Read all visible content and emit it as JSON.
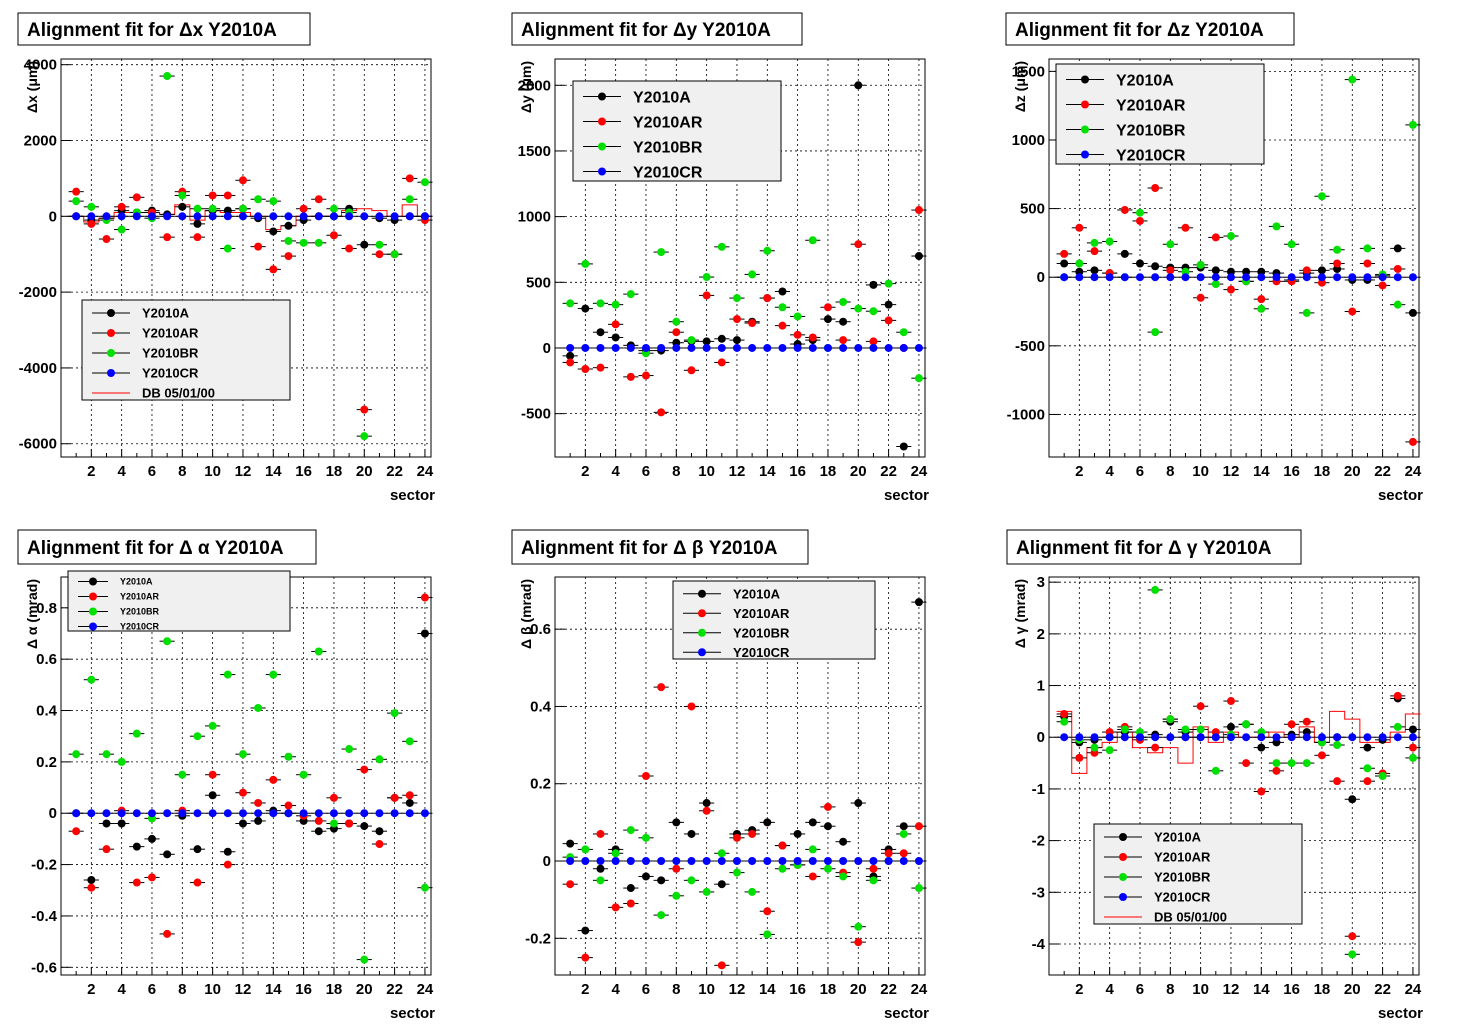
{
  "chart_data": [
    {
      "type": "scatter",
      "title": "Alignment fit for   Δx Y2010A",
      "xlabel": "sector",
      "ylabel": "Δx (μm)",
      "xlim": [
        0,
        24.4
      ],
      "ylim": [
        -6350,
        4150
      ],
      "xticks": [
        "2",
        "4",
        "6",
        "8",
        "10",
        "12",
        "14",
        "16",
        "18",
        "20",
        "22",
        "24"
      ],
      "yticks": [
        {
          "v": 4000,
          "label": "4000"
        },
        {
          "v": 2000,
          "label": "2000"
        },
        {
          "v": 0,
          "label": "0"
        },
        {
          "v": -2000,
          "label": "-2000"
        },
        {
          "v": -4000,
          "label": "-4000"
        },
        {
          "v": -6000,
          "label": "-6000"
        }
      ],
      "grid": true,
      "legend_position": "lower-middle",
      "legend": [
        "Y2010A",
        "Y2010AR",
        "Y2010BR",
        "Y2010CR",
        "DB 05/01/00"
      ],
      "series": [
        {
          "name": "Y2010A",
          "color": "#000000",
          "y": [
            0,
            -100,
            -50,
            150,
            100,
            150,
            50,
            250,
            -200,
            150,
            150,
            200,
            -50,
            -400,
            -250,
            -100,
            0,
            0,
            200,
            -750,
            -50,
            -100,
            0,
            0
          ]
        },
        {
          "name": "Y2010AR",
          "color": "#ff0000",
          "y": [
            650,
            -200,
            -600,
            250,
            500,
            100,
            -550,
            650,
            -550,
            550,
            550,
            950,
            -800,
            -1400,
            -1050,
            200,
            450,
            -500,
            -850,
            -5100,
            -1000,
            -1000,
            1000,
            -100
          ]
        },
        {
          "name": "Y2010BR",
          "color": "#00e000",
          "y": [
            400,
            250,
            -100,
            -350,
            100,
            -50,
            3700,
            550,
            200,
            200,
            -850,
            200,
            450,
            400,
            -650,
            -700,
            -700,
            200,
            100,
            -5800,
            -750,
            -1000,
            450,
            900
          ]
        },
        {
          "name": "Y2010CR",
          "color": "#0000ff",
          "y": [
            0,
            0,
            0,
            0,
            0,
            0,
            0,
            0,
            0,
            0,
            0,
            0,
            0,
            0,
            0,
            0,
            0,
            0,
            0,
            0,
            0,
            0,
            0,
            0
          ]
        }
      ],
      "db_line": {
        "name": "DB 05/01/00",
        "color": "#ff0000",
        "y": [
          0,
          -150,
          -50,
          100,
          100,
          100,
          50,
          300,
          -100,
          150,
          100,
          100,
          0,
          -350,
          -250,
          0,
          0,
          0,
          150,
          200,
          150,
          0,
          300,
          0
        ]
      }
    },
    {
      "type": "scatter",
      "title": "Alignment fit for   Δy Y2010A",
      "xlabel": "sector",
      "ylabel": "Δy (μm)",
      "xlim": [
        0,
        24.4
      ],
      "ylim": [
        -830,
        2200
      ],
      "xticks": [
        "2",
        "4",
        "6",
        "8",
        "10",
        "12",
        "14",
        "16",
        "18",
        "20",
        "22",
        "24"
      ],
      "yticks": [
        {
          "v": 2000,
          "label": "2000"
        },
        {
          "v": 1500,
          "label": "1500"
        },
        {
          "v": 1000,
          "label": "1000"
        },
        {
          "v": 500,
          "label": "500"
        },
        {
          "v": 0,
          "label": "0"
        },
        {
          "v": -500,
          "label": "-500"
        }
      ],
      "grid": true,
      "legend_position": "top-left",
      "legend": [
        "Y2010A",
        "Y2010AR",
        "Y2010BR",
        "Y2010CR"
      ],
      "series": [
        {
          "name": "Y2010A",
          "color": "#000000",
          "y": [
            -60,
            300,
            120,
            80,
            20,
            -20,
            -20,
            40,
            50,
            50,
            70,
            60,
            200,
            380,
            430,
            30,
            60,
            220,
            200,
            2000,
            480,
            330,
            -750,
            700
          ]
        },
        {
          "name": "Y2010AR",
          "color": "#ff0000",
          "y": [
            -110,
            -160,
            -150,
            180,
            -220,
            -210,
            -490,
            120,
            -170,
            400,
            -110,
            220,
            190,
            380,
            170,
            100,
            80,
            310,
            60,
            790,
            50,
            210,
            0,
            1050
          ]
        },
        {
          "name": "Y2010BR",
          "color": "#00e000",
          "y": [
            340,
            640,
            340,
            330,
            410,
            -40,
            730,
            200,
            60,
            540,
            770,
            380,
            560,
            740,
            310,
            240,
            820,
            0,
            350,
            300,
            280,
            490,
            120,
            -230
          ]
        },
        {
          "name": "Y2010CR",
          "color": "#0000ff",
          "y": [
            0,
            0,
            0,
            0,
            0,
            0,
            0,
            0,
            0,
            0,
            0,
            0,
            0,
            0,
            0,
            0,
            0,
            0,
            0,
            0,
            0,
            0,
            0,
            0
          ]
        }
      ]
    },
    {
      "type": "scatter",
      "title": "Alignment fit for   Δz Y2010A",
      "xlabel": "sector",
      "ylabel": "Δz (μm)",
      "xlim": [
        0,
        24.4
      ],
      "ylim": [
        -1310,
        1590
      ],
      "xticks": [
        "2",
        "4",
        "6",
        "8",
        "10",
        "12",
        "14",
        "16",
        "18",
        "20",
        "22",
        "24"
      ],
      "yticks": [
        {
          "v": 1500,
          "label": "1500"
        },
        {
          "v": 1000,
          "label": "1000"
        },
        {
          "v": 500,
          "label": "500"
        },
        {
          "v": 0,
          "label": "0"
        },
        {
          "v": -500,
          "label": "-500"
        },
        {
          "v": -1000,
          "label": "-1000"
        }
      ],
      "grid": true,
      "legend_position": "top-left",
      "legend": [
        "Y2010A",
        "Y2010AR",
        "Y2010BR",
        "Y2010CR"
      ],
      "series": [
        {
          "name": "Y2010A",
          "color": "#000000",
          "y": [
            100,
            40,
            50,
            30,
            170,
            100,
            80,
            70,
            70,
            70,
            50,
            40,
            40,
            40,
            30,
            -20,
            30,
            50,
            60,
            -20,
            -20,
            10,
            210,
            -260
          ]
        },
        {
          "name": "Y2010AR",
          "color": "#ff0000",
          "y": [
            170,
            360,
            190,
            30,
            490,
            410,
            650,
            50,
            360,
            -150,
            290,
            -90,
            -30,
            -160,
            -30,
            -30,
            50,
            -40,
            100,
            -250,
            100,
            -60,
            60,
            -1200
          ]
        },
        {
          "name": "Y2010BR",
          "color": "#00e000",
          "y": [
            0,
            100,
            250,
            260,
            0,
            470,
            -400,
            240,
            40,
            90,
            -50,
            300,
            -30,
            -230,
            370,
            240,
            -260,
            590,
            200,
            1440,
            210,
            20,
            -200,
            1110
          ]
        },
        {
          "name": "Y2010CR",
          "color": "#0000ff",
          "y": [
            0,
            0,
            0,
            0,
            0,
            0,
            0,
            0,
            0,
            0,
            0,
            0,
            0,
            0,
            0,
            0,
            0,
            0,
            0,
            0,
            0,
            0,
            0,
            0
          ]
        }
      ]
    },
    {
      "type": "scatter",
      "title": "Alignment fit for   Δ α Y2010A",
      "xlabel": "sector",
      "ylabel": "Δ α (mrad)",
      "xlim": [
        0,
        24.4
      ],
      "ylim": [
        -0.63,
        0.92
      ],
      "xticks": [
        "2",
        "4",
        "6",
        "8",
        "10",
        "12",
        "14",
        "16",
        "18",
        "20",
        "22",
        "24"
      ],
      "yticks": [
        {
          "v": 0.8,
          "label": "0.8"
        },
        {
          "v": 0.6,
          "label": "0.6"
        },
        {
          "v": 0.4,
          "label": "0.4"
        },
        {
          "v": 0.2,
          "label": "0.2"
        },
        {
          "v": 0,
          "label": "0"
        },
        {
          "v": -0.2,
          "label": "-0.2"
        },
        {
          "v": -0.4,
          "label": "-0.4"
        },
        {
          "v": -0.6,
          "label": "-0.6"
        }
      ],
      "grid": true,
      "legend_position": "top-left",
      "legend": [
        "Y2010A",
        "Y2010AR",
        "Y2010BR",
        "Y2010CR"
      ],
      "series": [
        {
          "name": "Y2010A",
          "color": "#000000",
          "y": [
            0,
            -0.26,
            -0.04,
            -0.04,
            -0.13,
            -0.1,
            -0.16,
            -0.01,
            -0.14,
            0.07,
            -0.15,
            -0.04,
            -0.03,
            0.01,
            0,
            -0.03,
            -0.07,
            -0.06,
            -0.04,
            -0.05,
            -0.07,
            0.06,
            0.04,
            0.7
          ]
        },
        {
          "name": "Y2010AR",
          "color": "#ff0000",
          "y": [
            -0.07,
            -0.29,
            -0.14,
            0.01,
            -0.27,
            -0.25,
            -0.47,
            0.01,
            -0.27,
            0.15,
            -0.2,
            0.08,
            0.04,
            0.13,
            0.03,
            -0.01,
            -0.03,
            0.06,
            -0.04,
            0.17,
            -0.12,
            0.06,
            0.07,
            0.84
          ]
        },
        {
          "name": "Y2010BR",
          "color": "#00e000",
          "y": [
            0.23,
            0.52,
            0.23,
            0.2,
            0.31,
            -0.02,
            0.67,
            0.15,
            0.3,
            0.34,
            0.54,
            0.23,
            0.41,
            0.54,
            0.22,
            0.15,
            0.63,
            -0.04,
            0.25,
            -0.57,
            0.21,
            0.39,
            0.28,
            -0.29
          ]
        },
        {
          "name": "Y2010CR",
          "color": "#0000ff",
          "y": [
            0,
            0,
            0,
            0,
            0,
            0,
            0,
            0,
            0,
            0,
            0,
            0,
            0,
            0,
            0,
            0,
            0,
            0,
            0,
            0,
            0,
            0,
            0,
            0
          ]
        }
      ]
    },
    {
      "type": "scatter",
      "title": "Alignment fit for   Δ β Y2010A",
      "xlabel": "sector",
      "ylabel": "Δ β (mrad)",
      "xlim": [
        0,
        24.4
      ],
      "ylim": [
        -0.295,
        0.735
      ],
      "xticks": [
        "2",
        "4",
        "6",
        "8",
        "10",
        "12",
        "14",
        "16",
        "18",
        "20",
        "22",
        "24"
      ],
      "yticks": [
        {
          "v": 0.6,
          "label": "0.6"
        },
        {
          "v": 0.4,
          "label": "0.4"
        },
        {
          "v": 0.2,
          "label": "0.2"
        },
        {
          "v": 0,
          "label": "0"
        },
        {
          "v": -0.2,
          "label": "-0.2"
        }
      ],
      "grid": true,
      "legend_position": "top-middle",
      "legend": [
        "Y2010A",
        "Y2010AR",
        "Y2010BR",
        "Y2010CR"
      ],
      "series": [
        {
          "name": "Y2010A",
          "color": "#000000",
          "y": [
            0.045,
            -0.18,
            -0.02,
            0.03,
            -0.07,
            -0.04,
            -0.05,
            0.1,
            0.07,
            0.15,
            -0.06,
            0.07,
            0.08,
            0.1,
            0.04,
            0.07,
            0.1,
            0.09,
            0.05,
            0.15,
            -0.04,
            0.03,
            0.09,
            0.67
          ]
        },
        {
          "name": "Y2010AR",
          "color": "#ff0000",
          "y": [
            -0.06,
            -0.25,
            0.07,
            -0.12,
            -0.11,
            0.22,
            0.45,
            -0.02,
            0.4,
            0.13,
            -0.27,
            0.06,
            0.07,
            -0.13,
            0.04,
            -0.01,
            -0.04,
            0.14,
            -0.03,
            -0.21,
            -0.02,
            0.02,
            0.02,
            0.09
          ]
        },
        {
          "name": "Y2010BR",
          "color": "#00e000",
          "y": [
            0.01,
            0.03,
            -0.05,
            0.02,
            0.08,
            0.06,
            -0.14,
            -0.09,
            -0.05,
            -0.08,
            0.02,
            -0.03,
            -0.08,
            -0.19,
            -0.02,
            -0.01,
            0.03,
            -0.02,
            -0.04,
            -0.17,
            -0.05,
            0,
            0.07,
            -0.07
          ]
        },
        {
          "name": "Y2010CR",
          "color": "#0000ff",
          "y": [
            0,
            0,
            0,
            0,
            0,
            0,
            0,
            0,
            0,
            0,
            0,
            0,
            0,
            0,
            0,
            0,
            0,
            0,
            0,
            0,
            0,
            0,
            0,
            0
          ]
        }
      ]
    },
    {
      "type": "scatter",
      "title": "Alignment fit for   Δ γ Y2010A",
      "xlabel": "sector",
      "ylabel": "Δ γ (mrad)",
      "xlim": [
        0,
        24.4
      ],
      "ylim": [
        -4.6,
        3.1
      ],
      "xticks": [
        "2",
        "4",
        "6",
        "8",
        "10",
        "12",
        "14",
        "16",
        "18",
        "20",
        "22",
        "24"
      ],
      "yticks": [
        {
          "v": 3,
          "label": "3"
        },
        {
          "v": 2,
          "label": "2"
        },
        {
          "v": 1,
          "label": "1"
        },
        {
          "v": 0,
          "label": "0"
        },
        {
          "v": -1,
          "label": "-1"
        },
        {
          "v": -2,
          "label": "-2"
        },
        {
          "v": -3,
          "label": "-3"
        },
        {
          "v": -4,
          "label": "-4"
        }
      ],
      "grid": true,
      "legend_position": "lower-left",
      "legend": [
        "Y2010A",
        "Y2010AR",
        "Y2010BR",
        "Y2010CR",
        "DB 05/01/00"
      ],
      "series": [
        {
          "name": "Y2010A",
          "color": "#000000",
          "y": [
            0.4,
            -0.1,
            -0.05,
            0,
            0.1,
            0,
            0.05,
            0.3,
            0.1,
            0,
            0,
            0.2,
            0.25,
            -0.2,
            -0.1,
            0.05,
            0.1,
            -0.1,
            0,
            -1.2,
            -0.2,
            -0.05,
            0.75,
            0.15
          ]
        },
        {
          "name": "Y2010AR",
          "color": "#ff0000",
          "y": [
            0.45,
            -0.4,
            -0.3,
            0.1,
            0.2,
            -0.05,
            -0.2,
            0.35,
            0,
            0.6,
            0.1,
            0.7,
            -0.5,
            -1.05,
            -0.65,
            0.25,
            0.3,
            -0.35,
            -0.85,
            -3.85,
            -0.85,
            -0.7,
            0.8,
            -0.2
          ]
        },
        {
          "name": "Y2010BR",
          "color": "#00e000",
          "y": [
            0.3,
            -0.05,
            -0.2,
            -0.25,
            0.15,
            0.1,
            2.85,
            0.35,
            0.15,
            0.15,
            -0.65,
            0.05,
            0.25,
            0.1,
            -0.5,
            -0.5,
            -0.5,
            -0.1,
            -0.15,
            -4.2,
            -0.6,
            -0.75,
            0.2,
            -0.4
          ]
        },
        {
          "name": "Y2010CR",
          "color": "#0000ff",
          "y": [
            0,
            0,
            0,
            0,
            0,
            0,
            0,
            0,
            0,
            0,
            0,
            0,
            0,
            0,
            0,
            0,
            0,
            0,
            0,
            0,
            0,
            0,
            0,
            0
          ]
        }
      ],
      "db_line": {
        "name": "DB 05/01/00",
        "color": "#ff0000",
        "y": [
          0.5,
          -0.7,
          -0.2,
          -0.1,
          0.1,
          -0.2,
          -0.3,
          -0.2,
          -0.5,
          0.2,
          -0.1,
          0.1,
          0,
          0,
          0.1,
          0,
          0.2,
          -0.1,
          0.5,
          0.35,
          -0.1,
          -0.1,
          0.1,
          0.45
        ]
      }
    }
  ]
}
